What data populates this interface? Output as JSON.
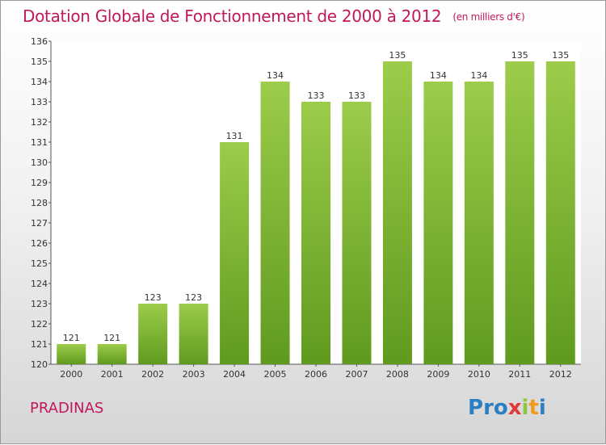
{
  "title": "Dotation Globale de Fonctionnement de 2000 à 2012",
  "unit_note": "(en milliers d'€)",
  "place": "PRADINAS",
  "logo": {
    "letters": [
      "P",
      "r",
      "o",
      "x",
      "i",
      "t",
      "i"
    ],
    "colors": [
      "#2a7fc4",
      "#2a7fc4",
      "#2a7fc4",
      "#e23a3a",
      "#8cc63f",
      "#f29a1d",
      "#2a7fc4"
    ]
  },
  "colors": {
    "title": "#c2185b",
    "bar_top": "#9ccc4a",
    "bar_bottom": "#5f9a1f"
  },
  "chart_data": {
    "type": "bar",
    "categories": [
      "2000",
      "2001",
      "2002",
      "2003",
      "2004",
      "2005",
      "2006",
      "2007",
      "2008",
      "2009",
      "2010",
      "2011",
      "2012"
    ],
    "values": [
      121,
      121,
      123,
      123,
      131,
      134,
      133,
      133,
      135,
      134,
      134,
      135,
      135
    ],
    "ylim": [
      120,
      136
    ],
    "yticks": [
      120,
      121,
      122,
      123,
      124,
      125,
      126,
      127,
      128,
      129,
      130,
      131,
      132,
      133,
      134,
      135,
      136
    ],
    "grid": false
  }
}
